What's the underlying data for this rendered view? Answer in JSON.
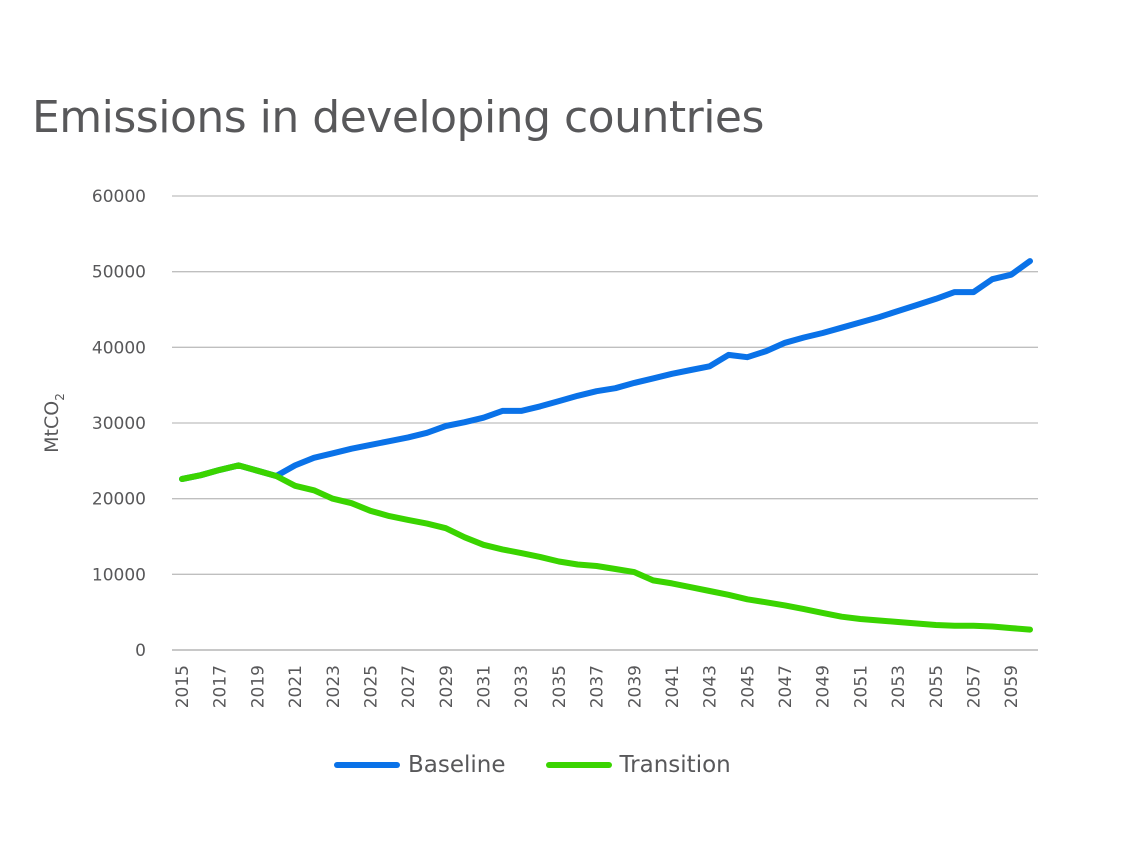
{
  "chart_data": {
    "type": "line",
    "title": "Emissions in developing countries",
    "xlabel": "",
    "ylabel": "MtCO",
    "ylabel_subscript": "2",
    "ylim": [
      0,
      60000
    ],
    "yticks": [
      "0",
      "10000",
      "20000",
      "30000",
      "40000",
      "50000",
      "60000"
    ],
    "ytick_values": [
      0,
      10000,
      20000,
      30000,
      40000,
      50000,
      60000
    ],
    "grid": true,
    "legend_position": "bottom",
    "x": [
      2015,
      2016,
      2017,
      2018,
      2019,
      2020,
      2021,
      2022,
      2023,
      2024,
      2025,
      2026,
      2027,
      2028,
      2029,
      2030,
      2031,
      2032,
      2033,
      2034,
      2035,
      2036,
      2037,
      2038,
      2039,
      2040,
      2041,
      2042,
      2043,
      2044,
      2045,
      2046,
      2047,
      2048,
      2049,
      2050,
      2051,
      2052,
      2053,
      2054,
      2055,
      2056,
      2057,
      2058,
      2059,
      2060
    ],
    "xticks": [
      "2015",
      "2017",
      "2019",
      "2021",
      "2023",
      "2025",
      "2027",
      "2029",
      "2031",
      "2033",
      "2035",
      "2037",
      "2039",
      "2041",
      "2043",
      "2045",
      "2047",
      "2049",
      "2051",
      "2053",
      "2055",
      "2057",
      "2059"
    ],
    "series": [
      {
        "name": "Baseline",
        "color": "#0a72e8",
        "values": [
          22600,
          23100,
          23800,
          24400,
          23700,
          23000,
          24400,
          25400,
          26000,
          26600,
          27100,
          27600,
          28100,
          28700,
          29600,
          30100,
          30700,
          31600,
          31600,
          32200,
          32900,
          33600,
          34200,
          34600,
          35300,
          35900,
          36500,
          37000,
          37500,
          39000,
          38700,
          39500,
          40600,
          41300,
          41900,
          42600,
          43300,
          44000,
          44800,
          45600,
          46400,
          47300,
          47300,
          49000,
          49600,
          51400
        ]
      },
      {
        "name": "Transition",
        "color": "#3ad400",
        "values": [
          22600,
          23100,
          23800,
          24400,
          23700,
          23000,
          21700,
          21100,
          20000,
          19400,
          18400,
          17700,
          17200,
          16700,
          16100,
          14900,
          13900,
          13300,
          12800,
          12300,
          11700,
          11300,
          11100,
          10700,
          10300,
          9200,
          8800,
          8300,
          7800,
          7300,
          6700,
          6300,
          5900,
          5400,
          4900,
          4400,
          4100,
          3900,
          3700,
          3500,
          3300,
          3200,
          3200,
          3100,
          2900,
          2700
        ]
      }
    ]
  }
}
